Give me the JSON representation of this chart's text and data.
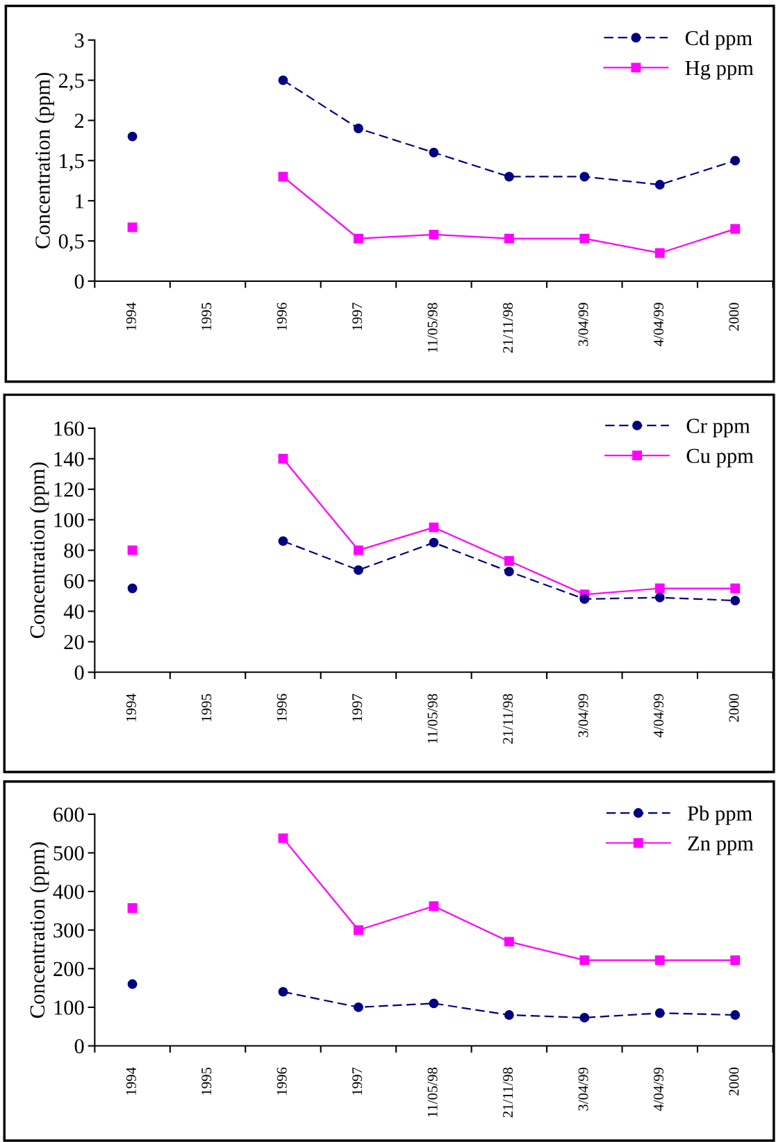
{
  "chart_data": [
    {
      "type": "line",
      "ylabel": "Concentration (ppm)",
      "categories": [
        "1994",
        "1995",
        "1996",
        "1997",
        "11/05/98",
        "21/11/98",
        "3/04/99",
        "4/04/99",
        "2000"
      ],
      "series": [
        {
          "name": "Cd ppm",
          "color": "#000080",
          "marker": "circle",
          "line_style": "dashed",
          "values": [
            1.8,
            null,
            2.5,
            1.9,
            1.6,
            1.3,
            1.3,
            1.2,
            1.5
          ]
        },
        {
          "name": "Hg ppm",
          "color": "#ff00ff",
          "marker": "square",
          "line_style": "solid",
          "values": [
            0.67,
            null,
            1.3,
            0.53,
            0.58,
            0.53,
            0.53,
            0.35,
            0.65
          ]
        }
      ],
      "ylim": [
        0,
        3
      ],
      "yticks": [
        0,
        {
          "value": 0.5,
          "label": "0,5"
        },
        1,
        {
          "value": 1.5,
          "label": "1,5"
        },
        2,
        {
          "value": 2.5,
          "label": "2,5"
        },
        3
      ],
      "grid": false,
      "legend": "top right"
    },
    {
      "type": "line",
      "ylabel": "Concentration (ppm)",
      "categories": [
        "1994",
        "1995",
        "1996",
        "1997",
        "11/05/98",
        "21/11/98",
        "3/04/99",
        "4/04/99",
        "2000"
      ],
      "series": [
        {
          "name": "Cr ppm",
          "color": "#000080",
          "marker": "circle",
          "line_style": "dashed",
          "values": [
            55,
            null,
            86,
            67,
            85,
            66,
            48,
            49,
            47
          ]
        },
        {
          "name": "Cu ppm",
          "color": "#ff00ff",
          "marker": "square",
          "line_style": "solid",
          "values": [
            80,
            null,
            140,
            80,
            95,
            73,
            51,
            55,
            55
          ]
        }
      ],
      "ylim": [
        0,
        160
      ],
      "yticks": [
        0,
        20,
        40,
        60,
        80,
        100,
        120,
        140,
        160
      ],
      "grid": false,
      "legend": "top right"
    },
    {
      "type": "line",
      "ylabel": "Concentration (ppm)",
      "categories": [
        "1994",
        "1995",
        "1996",
        "1997",
        "11/05/98",
        "21/11/98",
        "3/04/99",
        "4/04/99",
        "2000"
      ],
      "series": [
        {
          "name": "Pb ppm",
          "color": "#000080",
          "marker": "circle",
          "line_style": "dashed",
          "values": [
            160,
            null,
            140,
            100,
            110,
            80,
            73,
            85,
            80
          ]
        },
        {
          "name": "Zn ppm",
          "color": "#ff00ff",
          "marker": "square",
          "line_style": "solid",
          "values": [
            357,
            null,
            538,
            300,
            362,
            270,
            222,
            222,
            222
          ]
        }
      ],
      "ylim": [
        0,
        600
      ],
      "yticks": [
        0,
        100,
        200,
        300,
        400,
        500,
        600
      ],
      "grid": false,
      "legend": "top right"
    }
  ]
}
